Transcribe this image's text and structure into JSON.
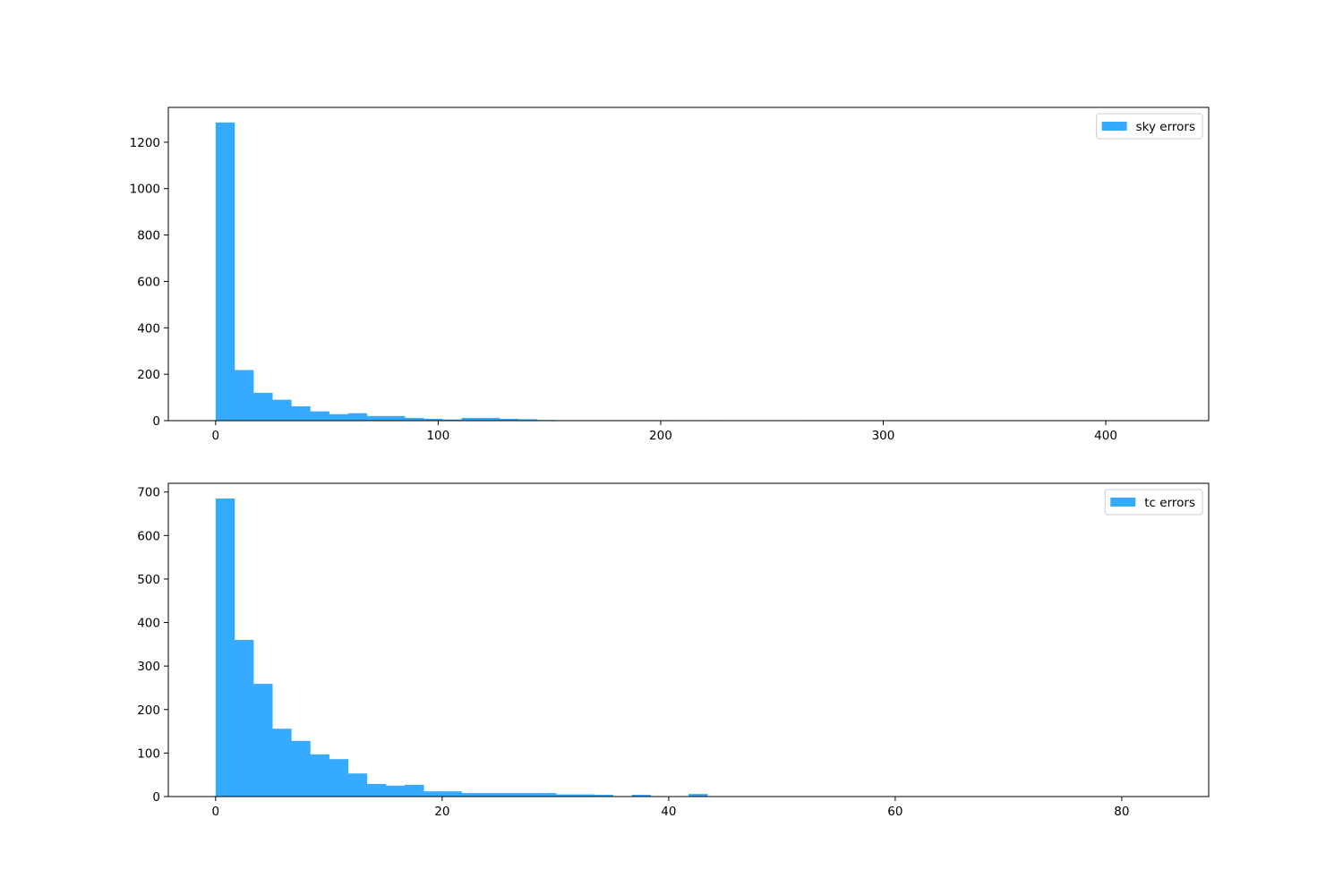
{
  "chart_data": [
    {
      "type": "histogram",
      "legend": "upper right",
      "series": [
        {
          "name": "sky errors",
          "color": "#36aafe",
          "bins": [
            0,
            8.5,
            17,
            25.5,
            34,
            42.5,
            51,
            59.5,
            68,
            76.5,
            85,
            93.5,
            102,
            110.5,
            119,
            127.5,
            136,
            144.5,
            153,
            161.5,
            170,
            178.5,
            187,
            195.5,
            204,
            212.5,
            221,
            229.5,
            238,
            246.5,
            255,
            263.5,
            272,
            280.5,
            289,
            297.5,
            306,
            314.5,
            323,
            331.5,
            340,
            348.5,
            357,
            365.5,
            374,
            382.5,
            391,
            399.5,
            408,
            416.5,
            425
          ],
          "values": [
            1285,
            218,
            120,
            90,
            62,
            40,
            28,
            32,
            20,
            20,
            12,
            8,
            5,
            12,
            12,
            8,
            6,
            3,
            2,
            2,
            2,
            2,
            2,
            2,
            0,
            0,
            2,
            0,
            0,
            0,
            0,
            2,
            2,
            2,
            0,
            0,
            0,
            0,
            0,
            0,
            0,
            0,
            0,
            1,
            0,
            0,
            0,
            0,
            1,
            1
          ]
        }
      ],
      "xlim": [
        -21.25,
        446.25
      ],
      "xticks": [
        0,
        100,
        200,
        300,
        400
      ],
      "ylim": [
        0,
        1350
      ],
      "yticks": [
        0,
        200,
        400,
        600,
        800,
        1000,
        1200
      ]
    },
    {
      "type": "histogram",
      "legend": "upper right",
      "series": [
        {
          "name": "tc errors",
          "color": "#36aafe",
          "bins": [
            0,
            1.67,
            3.34,
            5.01,
            6.68,
            8.35,
            10.02,
            11.69,
            13.36,
            15.03,
            16.7,
            18.37,
            20.04,
            21.71,
            23.38,
            25.05,
            26.72,
            28.39,
            30.06,
            31.73,
            33.4,
            35.07,
            36.74,
            38.41,
            40.08,
            41.75,
            43.42,
            45.09,
            46.76,
            48.43,
            50.1,
            51.77,
            53.44,
            55.11,
            56.78,
            58.45,
            60.12,
            61.79,
            63.46,
            65.13,
            66.8,
            68.47,
            70.14,
            71.81,
            73.48,
            75.15,
            76.82,
            78.49,
            80.16,
            81.83,
            83.5
          ],
          "values": [
            685,
            360,
            259,
            156,
            128,
            97,
            86,
            53,
            29,
            25,
            27,
            12,
            12,
            8,
            8,
            8,
            8,
            8,
            5,
            5,
            4,
            0,
            4,
            0,
            0,
            6,
            0,
            0,
            0,
            0,
            0,
            0,
            0,
            0,
            0,
            0,
            0,
            0,
            0,
            0,
            0,
            0,
            0,
            0,
            0,
            0,
            0,
            0,
            0,
            1
          ]
        }
      ],
      "xlim": [
        -4.175,
        87.675
      ],
      "xticks": [
        0,
        20,
        40,
        60,
        80
      ],
      "ylim": [
        0,
        720
      ],
      "yticks": [
        0,
        100,
        200,
        300,
        400,
        500,
        600,
        700
      ]
    }
  ]
}
